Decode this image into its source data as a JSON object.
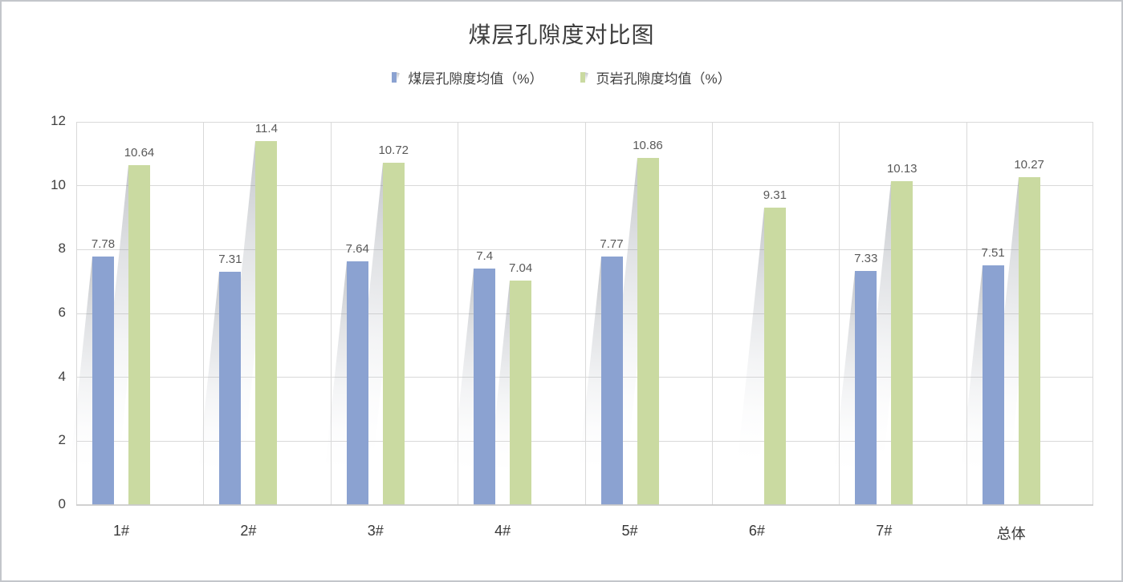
{
  "chart": {
    "title": "煤层孔隙度对比图",
    "accent_blue": "#8BA2D1",
    "accent_green": "#CADAA1",
    "gridline_color": "#D9D9D9",
    "border_color": "#C3C6CB"
  },
  "chart_data": {
    "type": "bar",
    "title": "煤层孔隙度对比图",
    "categories": [
      "1#",
      "2#",
      "3#",
      "4#",
      "5#",
      "6#",
      "7#",
      "总体"
    ],
    "series": [
      {
        "name": "煤层孔隙度均值（%）",
        "color": "#8BA2D1",
        "values": [
          7.78,
          7.31,
          7.64,
          7.4,
          7.77,
          null,
          7.33,
          7.51
        ]
      },
      {
        "name": "页岩孔隙度均值（%）",
        "color": "#CADAA1",
        "values": [
          10.64,
          11.4,
          10.72,
          7.04,
          10.86,
          9.31,
          10.13,
          10.27
        ]
      }
    ],
    "data_labels": true,
    "xlabel": "",
    "ylabel": "",
    "ylim": [
      0,
      12
    ],
    "yticks": [
      0,
      2,
      4,
      6,
      8,
      10,
      12
    ],
    "grid": true,
    "legend_position": "top"
  }
}
